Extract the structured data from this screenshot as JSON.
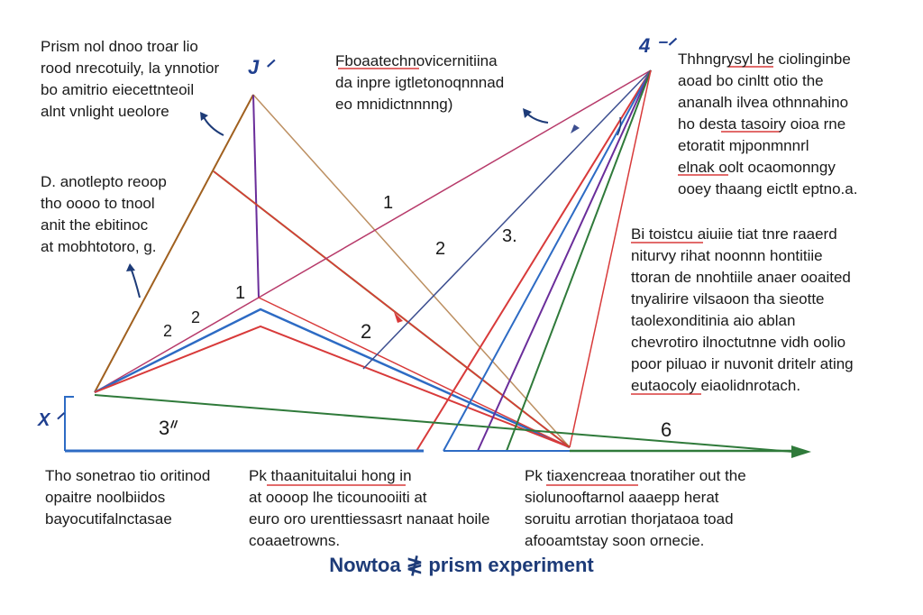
{
  "caption": "Nowtoa ≹ prism experiment",
  "colors": {
    "red": "#d83a3a",
    "blue": "#2d6bc4",
    "purple": "#6a2d9a",
    "green": "#2f7a3a",
    "brown": "#a0601f",
    "magenta": "#b73a6a",
    "navy": "#1d3b78",
    "olive": "#8a6a1a"
  },
  "corner_labels": {
    "top_left": "J ᐟ",
    "top_right": "4 ⁻ᐟ",
    "left_bottom": "X ᐟ"
  },
  "numbers": {
    "n1_upper": "1",
    "n2_upper": "2",
    "n3_upper": "3.",
    "n1_lower": "1",
    "n2_a": "2",
    "n2_b": "2",
    "n2_mid": "2",
    "n3_bottom": "3ᐥ",
    "n6": "6"
  },
  "notes": {
    "top_left": "Prism nol dnoo troar lio\nrood nrecotuily, la ynnotior\nbo amitrio eiecettnteoil\nalnt vnlight ueolore",
    "top_center": "Fboaatechnovicernitiina\nda inpre igtletonoqnnnad\neo mnidictnnnng)",
    "top_right": "Thhngrysyl he ciolinginbe\naoad bo cinltt otio the\nananalh ilvea othnnahino\nho desta tasoiry oioa rne\netoratit mjponmnnrl\nelnak oolt ocaomonngy\nooey thaang eictlt eptno.a.",
    "mid_left": "D. anotlepto reoop\ntho oooo to tnool\nanit the ebitinoc\nat mobhtotoro, g.",
    "mid_right": "Bi toistcu aiuiie tiat tnre raaerd\nniturvy rihat noonnn hontitiie\nttoran de nnohtiile anaer ooaited\ntnyalirire vilsaoon tha sieotte\ntaolexonditinia aio ablan\nchevrotiro ilnoctutnne vidh oolio\npoor piluao ir nuvonit dritelr ating\neutaocoly eiaolidnrotach.",
    "bottom_left": "Tho sonetrao tio oritinod\nopaitre noolbiidos\nbayocutifalnctasae",
    "bottom_center": "Pk thaanituitalui hong in\nat oooop lhe ticounooiiti at\neuro oro urenttiessasrt nanaat hoile\ncoaaetrowns.",
    "bottom_right": "Pk tiaxencreaa tnoratiher out the\nsiolunooftarnol aaaepp herat\nsoruitu arrotian thorjataoa toad\nafooamtstay soon ornecie."
  }
}
